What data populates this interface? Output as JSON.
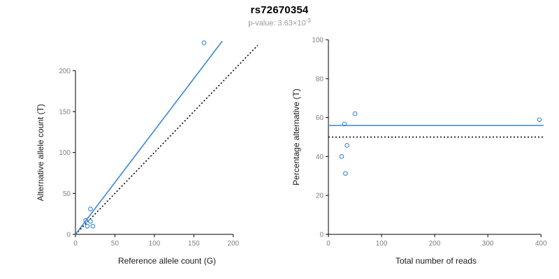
{
  "header": {
    "title": "rs72670354",
    "pvalue_prefix": "p-value: 3.63×10",
    "pvalue_exponent": "-3"
  },
  "colors": {
    "accent": "#3a87d4",
    "reference_line": "#000000",
    "axis": "#000000",
    "tick_label": "#808080",
    "axis_title": "#1a1a1a",
    "subtitle": "#999999"
  },
  "chart_data": [
    {
      "type": "scatter",
      "title": "",
      "xlabel": "Reference allele count (G)",
      "ylabel": "Alternative allele count (T)",
      "xlim": [
        0,
        232
      ],
      "ylim": [
        0,
        242
      ],
      "xticks": [
        0,
        50,
        100,
        150,
        200
      ],
      "yticks": [
        0,
        50,
        100,
        150,
        200
      ],
      "grid": false,
      "legend": false,
      "points": [
        [
          15,
          10
        ],
        [
          13,
          17
        ],
        [
          22,
          10
        ],
        [
          19,
          16
        ],
        [
          19,
          31
        ],
        [
          163,
          234
        ]
      ],
      "lines": [
        {
          "name": "identity-line",
          "style": "dotted",
          "color": "#000000",
          "x1": 0,
          "y1": 0,
          "x2": 231,
          "y2": 231
        },
        {
          "name": "regression-line",
          "style": "solid",
          "color": "#3a87d4",
          "x1": 0,
          "y1": 0,
          "x2": 186,
          "y2": 236
        }
      ]
    },
    {
      "type": "scatter",
      "title": "",
      "xlabel": "Total number of reads",
      "ylabel": "Percentage alternative (T)",
      "xlim": [
        0,
        405
      ],
      "ylim": [
        0,
        100
      ],
      "xticks": [
        0,
        100,
        200,
        300,
        400
      ],
      "yticks": [
        0,
        20,
        40,
        60,
        80,
        100
      ],
      "grid": false,
      "legend": false,
      "points": [
        [
          25,
          40
        ],
        [
          30,
          56.7
        ],
        [
          32,
          31.3
        ],
        [
          35,
          45.7
        ],
        [
          50,
          62
        ],
        [
          397,
          58.9
        ]
      ],
      "lines": [
        {
          "name": "fifty-percent-line",
          "style": "dotted",
          "color": "#000000",
          "x1": 0,
          "y1": 50,
          "x2": 405,
          "y2": 50
        },
        {
          "name": "mean-percentage-line",
          "style": "solid",
          "color": "#3a87d4",
          "x1": 0,
          "y1": 56,
          "x2": 405,
          "y2": 56
        }
      ]
    }
  ]
}
